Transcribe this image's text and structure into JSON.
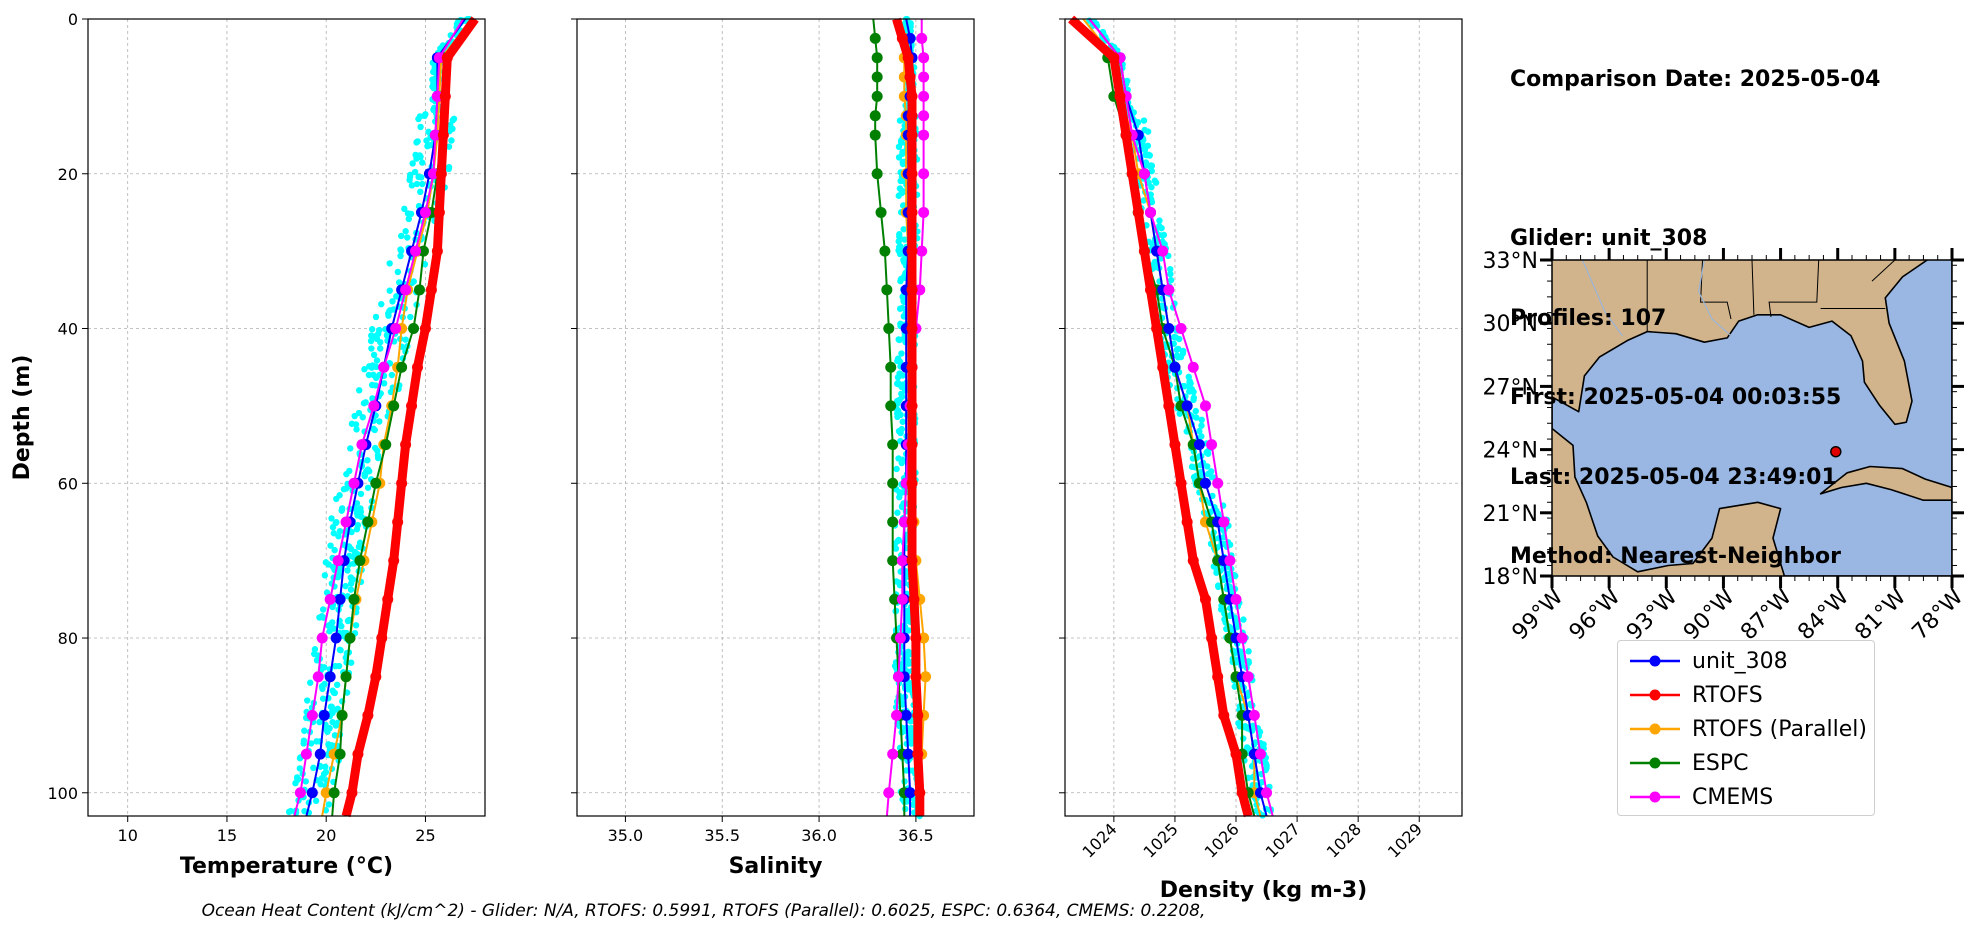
{
  "info": {
    "comparison_date": "Comparison Date: 2025-05-04",
    "glider": "Glider: unit_308",
    "profiles": "Profiles: 107",
    "first": "First: 2025-05-04 00:03:55",
    "last": "Last: 2025-05-04 23:49:01",
    "method": "Method: Nearest-Neighbor"
  },
  "footnote": "Ocean Heat Content (kJ/cm^2) - Glider: N/A,  RTOFS: 0.5991,  RTOFS (Parallel): 0.6025,  ESPC: 0.6364,  CMEMS: 0.2208,",
  "colors": {
    "unit_308": "#0000ff",
    "RTOFS": "#ff0000",
    "RTOFS (Parallel)": "#ffa500",
    "ESPC": "#008000",
    "CMEMS": "#ff00ff",
    "glider_scatter": "#00ffff",
    "land": "#d2b48c",
    "water": "#99b7e2"
  },
  "legend": [
    "unit_308",
    "RTOFS",
    "RTOFS (Parallel)",
    "ESPC",
    "CMEMS"
  ],
  "chart_data": [
    {
      "type": "line",
      "xlabel": "Temperature (°C)",
      "ylabel": "Depth (m)",
      "xlim": [
        8,
        28
      ],
      "ylim": [
        103,
        0
      ],
      "xticks": [
        10,
        15,
        20,
        25
      ],
      "yticks": [
        0,
        20,
        40,
        60,
        80,
        100
      ],
      "grid": true,
      "depth": [
        0,
        5,
        10,
        15,
        20,
        25,
        30,
        35,
        40,
        45,
        50,
        55,
        60,
        65,
        70,
        75,
        80,
        85,
        90,
        95,
        100,
        103
      ],
      "series": [
        {
          "name": "unit_308",
          "values": [
            27.0,
            25.6,
            25.6,
            25.5,
            25.2,
            24.8,
            24.3,
            23.8,
            23.3,
            22.9,
            22.5,
            22.0,
            21.6,
            21.2,
            20.9,
            20.7,
            20.5,
            20.2,
            19.9,
            19.7,
            19.3,
            19.0
          ]
        },
        {
          "name": "RTOFS",
          "values": [
            27.5,
            26.1,
            26.0,
            25.9,
            25.8,
            25.7,
            25.6,
            25.3,
            25.0,
            24.6,
            24.3,
            24.0,
            23.8,
            23.6,
            23.4,
            23.1,
            22.8,
            22.5,
            22.1,
            21.6,
            21.3,
            21.0
          ]
        },
        {
          "name": "RTOFS (Parallel)",
          "values": [
            27.4,
            25.8,
            25.7,
            25.6,
            25.4,
            25.1,
            24.6,
            24.1,
            23.8,
            23.6,
            23.3,
            22.9,
            22.7,
            22.3,
            21.9,
            21.5,
            21.2,
            21.0,
            20.8,
            20.4,
            20.0,
            19.8
          ]
        },
        {
          "name": "ESPC",
          "values": [
            27.5,
            26.0,
            25.9,
            25.8,
            25.6,
            25.3,
            24.9,
            24.7,
            24.4,
            23.8,
            23.4,
            23.0,
            22.5,
            22.1,
            21.7,
            21.4,
            21.2,
            21.0,
            20.8,
            20.7,
            20.4,
            20.3
          ]
        },
        {
          "name": "CMEMS",
          "values": [
            26.9,
            25.7,
            25.6,
            25.5,
            25.4,
            25.0,
            24.5,
            24.0,
            23.5,
            22.9,
            22.4,
            21.8,
            21.4,
            21.0,
            20.6,
            20.2,
            19.8,
            19.6,
            19.3,
            19.0,
            18.7,
            18.4
          ]
        }
      ]
    },
    {
      "type": "line",
      "xlabel": "Salinity",
      "xlim": [
        34.75,
        36.8
      ],
      "ylim": [
        103,
        0
      ],
      "xticks": [
        35.0,
        35.5,
        36.0,
        36.5
      ],
      "yticks": [
        0,
        20,
        40,
        60,
        80,
        100
      ],
      "grid": true,
      "depth": [
        0,
        2.5,
        5,
        7.5,
        10,
        12.5,
        15,
        20,
        25,
        30,
        35,
        40,
        45,
        50,
        55,
        60,
        65,
        70,
        75,
        80,
        85,
        90,
        95,
        100,
        103
      ],
      "series": [
        {
          "name": "unit_308",
          "values": [
            36.45,
            36.47,
            36.48,
            36.47,
            36.47,
            36.46,
            36.46,
            36.46,
            36.46,
            36.46,
            36.45,
            36.45,
            36.45,
            36.45,
            36.45,
            36.45,
            36.44,
            36.44,
            36.44,
            36.44,
            36.44,
            36.45,
            36.46,
            36.47,
            36.47
          ]
        },
        {
          "name": "RTOFS",
          "values": [
            36.4,
            36.43,
            36.46,
            36.47,
            36.48,
            36.48,
            36.48,
            36.48,
            36.48,
            36.48,
            36.48,
            36.48,
            36.48,
            36.48,
            36.48,
            36.48,
            36.48,
            36.48,
            36.49,
            36.5,
            36.5,
            36.51,
            36.51,
            36.52,
            36.52
          ]
        },
        {
          "name": "RTOFS (Parallel)",
          "values": [
            36.42,
            36.44,
            36.44,
            36.44,
            36.44,
            36.45,
            36.45,
            36.45,
            36.45,
            36.46,
            36.46,
            36.46,
            36.46,
            36.47,
            36.47,
            36.48,
            36.49,
            36.5,
            36.52,
            36.54,
            36.55,
            36.54,
            36.53,
            36.52,
            36.52
          ]
        },
        {
          "name": "ESPC",
          "values": [
            36.28,
            36.29,
            36.3,
            36.3,
            36.3,
            36.29,
            36.29,
            36.3,
            36.32,
            36.34,
            36.35,
            36.36,
            36.37,
            36.37,
            36.38,
            36.38,
            36.38,
            36.38,
            36.39,
            36.4,
            36.41,
            36.42,
            36.43,
            36.44,
            36.44
          ]
        },
        {
          "name": "CMEMS",
          "values": [
            36.53,
            36.53,
            36.54,
            36.54,
            36.54,
            36.54,
            36.54,
            36.54,
            36.54,
            36.53,
            36.52,
            36.5,
            36.48,
            36.47,
            36.46,
            36.45,
            36.44,
            36.43,
            36.43,
            36.42,
            36.41,
            36.4,
            36.38,
            36.36,
            36.35
          ]
        }
      ]
    },
    {
      "type": "line",
      "xlabel": "Density (kg m-3)",
      "xlim": [
        1023.2,
        1029.7
      ],
      "ylim": [
        103,
        0
      ],
      "xticks": [
        1024,
        1025,
        1026,
        1027,
        1028,
        1029
      ],
      "yticks": [
        0,
        20,
        40,
        60,
        80,
        100
      ],
      "grid": true,
      "depth": [
        0,
        5,
        10,
        15,
        20,
        25,
        30,
        35,
        40,
        45,
        50,
        55,
        60,
        65,
        70,
        75,
        80,
        85,
        90,
        95,
        100,
        103
      ],
      "series": [
        {
          "name": "unit_308",
          "values": [
            1023.6,
            1024.1,
            1024.2,
            1024.4,
            1024.5,
            1024.6,
            1024.7,
            1024.8,
            1024.9,
            1025.0,
            1025.2,
            1025.4,
            1025.5,
            1025.7,
            1025.8,
            1025.9,
            1026.0,
            1026.1,
            1026.2,
            1026.3,
            1026.4,
            1026.5
          ]
        },
        {
          "name": "RTOFS",
          "values": [
            1023.3,
            1024.0,
            1024.1,
            1024.2,
            1024.3,
            1024.4,
            1024.5,
            1024.6,
            1024.7,
            1024.8,
            1024.9,
            1025.0,
            1025.1,
            1025.2,
            1025.3,
            1025.5,
            1025.6,
            1025.7,
            1025.8,
            1026.0,
            1026.1,
            1026.2
          ]
        },
        {
          "name": "RTOFS (Parallel)",
          "values": [
            1023.5,
            1024.0,
            1024.1,
            1024.3,
            1024.4,
            1024.6,
            1024.7,
            1024.8,
            1024.9,
            1025.0,
            1025.2,
            1025.3,
            1025.4,
            1025.5,
            1025.7,
            1025.8,
            1025.9,
            1026.0,
            1026.2,
            1026.3,
            1026.3,
            1026.4
          ]
        },
        {
          "name": "ESPC",
          "values": [
            1023.4,
            1023.9,
            1024.0,
            1024.2,
            1024.3,
            1024.4,
            1024.5,
            1024.7,
            1024.8,
            1025.0,
            1025.1,
            1025.3,
            1025.4,
            1025.6,
            1025.7,
            1025.8,
            1025.9,
            1026.0,
            1026.1,
            1026.1,
            1026.2,
            1026.3
          ]
        },
        {
          "name": "CMEMS",
          "values": [
            1023.6,
            1024.1,
            1024.2,
            1024.3,
            1024.5,
            1024.6,
            1024.8,
            1024.9,
            1025.1,
            1025.3,
            1025.5,
            1025.6,
            1025.7,
            1025.8,
            1025.9,
            1026.0,
            1026.1,
            1026.2,
            1026.3,
            1026.4,
            1026.5,
            1026.6
          ]
        }
      ]
    }
  ],
  "map": {
    "lat_labels": [
      "33°N",
      "30°N",
      "27°N",
      "24°N",
      "21°N",
      "18°N"
    ],
    "lon_labels": [
      "99°W",
      "96°W",
      "93°W",
      "90°W",
      "87°W",
      "84°W",
      "81°W",
      "78°W"
    ],
    "lat_range": [
      18,
      33
    ],
    "lon_range": [
      -99,
      -78
    ],
    "glider_position": {
      "lon": -84.1,
      "lat": 23.9
    }
  }
}
